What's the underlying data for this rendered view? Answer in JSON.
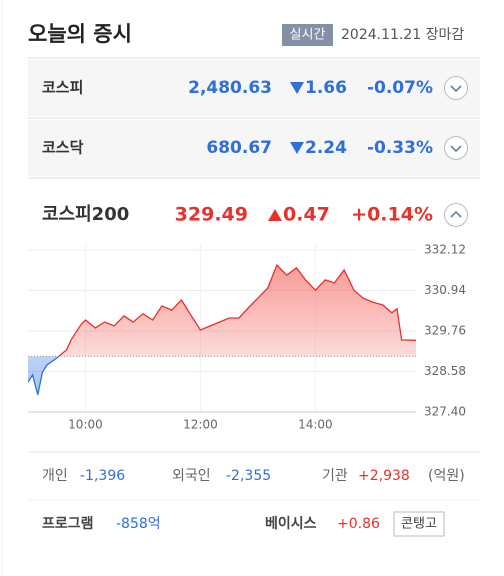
{
  "header": {
    "title": "오늘의 증시",
    "badge": "실시간",
    "date": "2024.11.21 장마감"
  },
  "indices": [
    {
      "name": "코스피",
      "value": "2,480.63",
      "change": "1.66",
      "rate": "-0.07%",
      "direction": "down"
    },
    {
      "name": "코스닥",
      "value": "680.67",
      "change": "2.24",
      "rate": "-0.33%",
      "direction": "down"
    },
    {
      "name": "코스피200",
      "value": "329.49",
      "change": "0.47",
      "rate": "+0.14%",
      "direction": "up"
    }
  ],
  "chart": {
    "type": "line",
    "x": [
      9.0,
      9.08,
      9.17,
      9.25,
      9.33,
      9.5,
      9.67,
      9.75,
      9.92,
      10.0,
      10.17,
      10.33,
      10.5,
      10.67,
      10.83,
      11.0,
      11.17,
      11.33,
      11.5,
      11.67,
      11.83,
      12.0,
      12.17,
      12.33,
      12.5,
      12.67,
      12.83,
      13.0,
      13.17,
      13.33,
      13.5,
      13.67,
      13.83,
      14.0,
      14.17,
      14.33,
      14.5,
      14.67,
      14.83,
      15.0,
      15.17,
      15.33,
      15.42,
      15.5,
      15.75
    ],
    "values": [
      328.27,
      328.48,
      327.9,
      328.56,
      328.77,
      328.97,
      329.21,
      329.5,
      329.94,
      330.08,
      329.85,
      330.02,
      329.91,
      330.2,
      330.02,
      330.26,
      330.08,
      330.49,
      330.37,
      330.66,
      330.23,
      329.79,
      329.91,
      330.02,
      330.14,
      330.14,
      330.43,
      330.72,
      331.01,
      331.68,
      331.39,
      331.6,
      331.25,
      330.95,
      331.25,
      331.16,
      331.54,
      330.95,
      330.72,
      330.6,
      330.52,
      330.29,
      330.41,
      329.5,
      329.49
    ],
    "baseline": 329.02,
    "xlim": [
      9,
      15.75
    ],
    "ylim": [
      327.4,
      332.12
    ],
    "xticks": [
      {
        "value": 10,
        "label": "10:00"
      },
      {
        "value": 12,
        "label": "12:00"
      },
      {
        "value": 14,
        "label": "14:00"
      }
    ],
    "yticks": [
      332.12,
      330.94,
      329.76,
      328.58,
      {
        "value": 327.4,
        "label": "327.40"
      }
    ],
    "grid": true,
    "up_color": "#e8312a",
    "down_color": "#2f6fd8"
  },
  "investors": {
    "items": [
      {
        "label": "개인",
        "value": "-1,396"
      },
      {
        "label": "외국인",
        "value": "-2,355"
      },
      {
        "label": "기관",
        "value": "+2,938"
      }
    ],
    "unit": "(억원)"
  },
  "program": {
    "label": "프로그램",
    "value": "-858억"
  },
  "basis": {
    "label": "베이시스",
    "value": "+0.86",
    "tag": "콘탱고"
  }
}
